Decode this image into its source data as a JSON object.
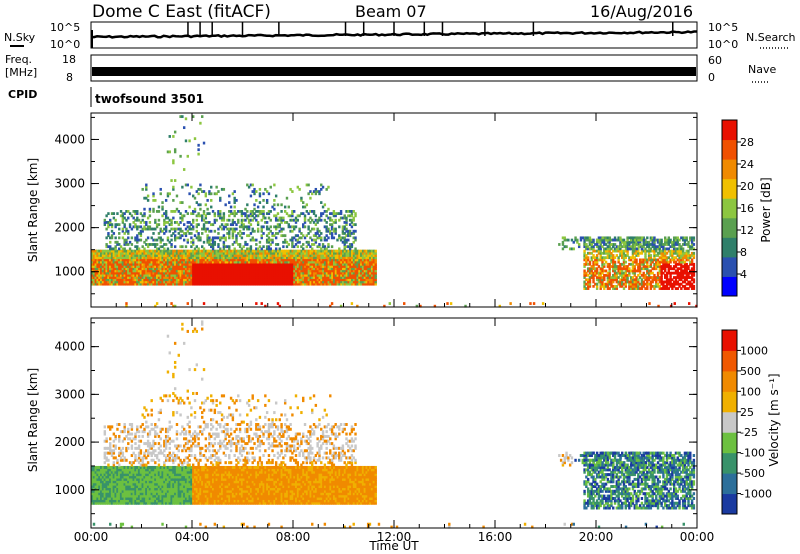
{
  "header": {
    "title": "Dome C East (fitACF)",
    "beam": "Beam 07",
    "date": "16/Aug/2016"
  },
  "chart_data": [
    {
      "type": "line",
      "panel": "noise",
      "left_label": "N.Sky",
      "right_label": "N.Search",
      "left_ticks": [
        "10^5",
        "10^0"
      ],
      "right_ticks": [
        "10^5",
        "10^0"
      ]
    },
    {
      "type": "line",
      "panel": "frequency",
      "left_label": "Freq.",
      "left_unit": "[MHz]",
      "right_label": "Nave",
      "left_ticks": [
        "18",
        "8"
      ],
      "right_ticks": [
        "60",
        "0"
      ],
      "cpid_label": "CPID",
      "cpid_value": "twofsound 3501"
    },
    {
      "type": "heatmap",
      "panel": "power",
      "ylabel": "Slant Range [km]",
      "ylim": [
        200,
        4600
      ],
      "y_ticks": [
        "4000",
        "3000",
        "2000",
        "1000"
      ],
      "colorbar_label": "Power [dB]",
      "colorbar_ticks": [
        "28",
        "24",
        "20",
        "16",
        "12",
        "8",
        "4"
      ],
      "colors": [
        "#0000ff",
        "#2a50b0",
        "#2f7f6a",
        "#5aa050",
        "#8cc640",
        "#f0c000",
        "#f08a00",
        "#f05000",
        "#e81000"
      ]
    },
    {
      "type": "heatmap",
      "panel": "velocity",
      "ylabel": "Slant Range [km]",
      "ylim": [
        200,
        4600
      ],
      "y_ticks": [
        "4000",
        "3000",
        "2000",
        "1000"
      ],
      "colorbar_label": "Velocity [m s⁻¹]",
      "colorbar_ticks": [
        "1000",
        "500",
        "100",
        "25",
        "-25",
        "-100",
        "-500",
        "-1000"
      ],
      "colors": [
        "#1a3aa0",
        "#2c6f9a",
        "#38926a",
        "#6cc040",
        "#c8c8c8",
        "#f0b000",
        "#f08a00",
        "#f05800",
        "#e81000"
      ]
    }
  ],
  "x_axis": {
    "label": "Time UT",
    "ticks": [
      "00:00",
      "04:00",
      "08:00",
      "12:00",
      "16:00",
      "20:00",
      "00:00"
    ]
  }
}
